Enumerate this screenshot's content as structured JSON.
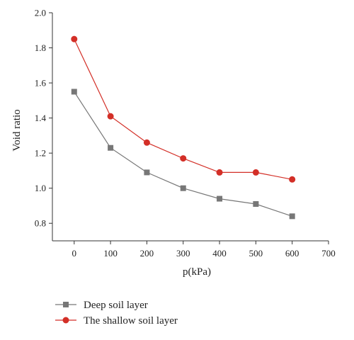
{
  "chart_data": {
    "type": "line",
    "title": "",
    "xlabel": "p(kPa)",
    "ylabel": "Void ratio",
    "xlim": [
      -60,
      700
    ],
    "ylim": [
      0.7,
      2.0
    ],
    "xticks": [
      0,
      100,
      200,
      300,
      400,
      500,
      600,
      700
    ],
    "yticks": [
      0.8,
      1.0,
      1.2,
      1.4,
      1.6,
      1.8,
      2.0
    ],
    "xtick_labels": [
      "0",
      "100",
      "200",
      "300",
      "400",
      "500",
      "600",
      "700"
    ],
    "ytick_labels": [
      "0.8",
      "1.0",
      "1.2",
      "1.4",
      "1.6",
      "1.8",
      "2.0"
    ],
    "grid": false,
    "legend_position": "bottom-left, below plot",
    "series": [
      {
        "name": "Deep soil layer",
        "marker": "square",
        "color": "#777777",
        "line_color": "#777777",
        "x": [
          0,
          100,
          200,
          300,
          400,
          500,
          600
        ],
        "y": [
          1.55,
          1.23,
          1.09,
          1.0,
          0.94,
          0.91,
          0.84
        ]
      },
      {
        "name": "The shallow soil layer",
        "marker": "circle",
        "color": "#d32f27",
        "line_color": "#d32f27",
        "x": [
          0,
          100,
          200,
          300,
          400,
          500,
          600
        ],
        "y": [
          1.85,
          1.41,
          1.26,
          1.17,
          1.09,
          1.09,
          1.05
        ]
      }
    ]
  }
}
